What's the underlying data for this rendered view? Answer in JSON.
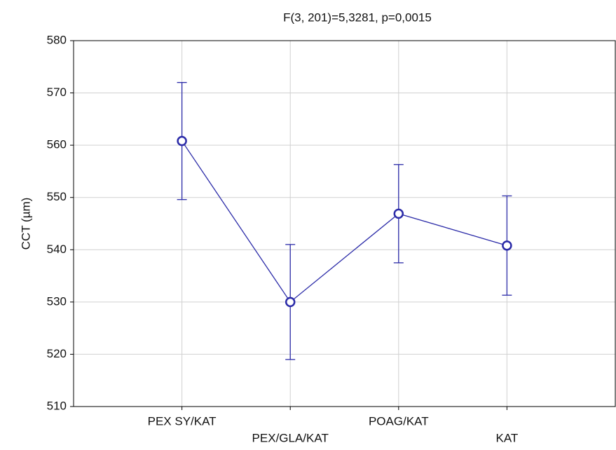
{
  "chart_data": {
    "type": "line",
    "title": "F(3, 201)=5,3281, p=0,0015",
    "ylabel": "CCT (µm)",
    "categories": [
      "PEX SY/KAT",
      "PEX/GLA/KAT",
      "POAG/KAT",
      "KAT"
    ],
    "series": [
      {
        "name": "CCT",
        "color": "#2b2ba8",
        "values": [
          560.8,
          530,
          546.9,
          540.8
        ],
        "errors": [
          11.2,
          11,
          9.4,
          9.5
        ]
      }
    ],
    "ylim": [
      510,
      580
    ],
    "yticks": [
      510,
      520,
      530,
      540,
      550,
      560,
      570,
      580
    ],
    "grid": true
  }
}
